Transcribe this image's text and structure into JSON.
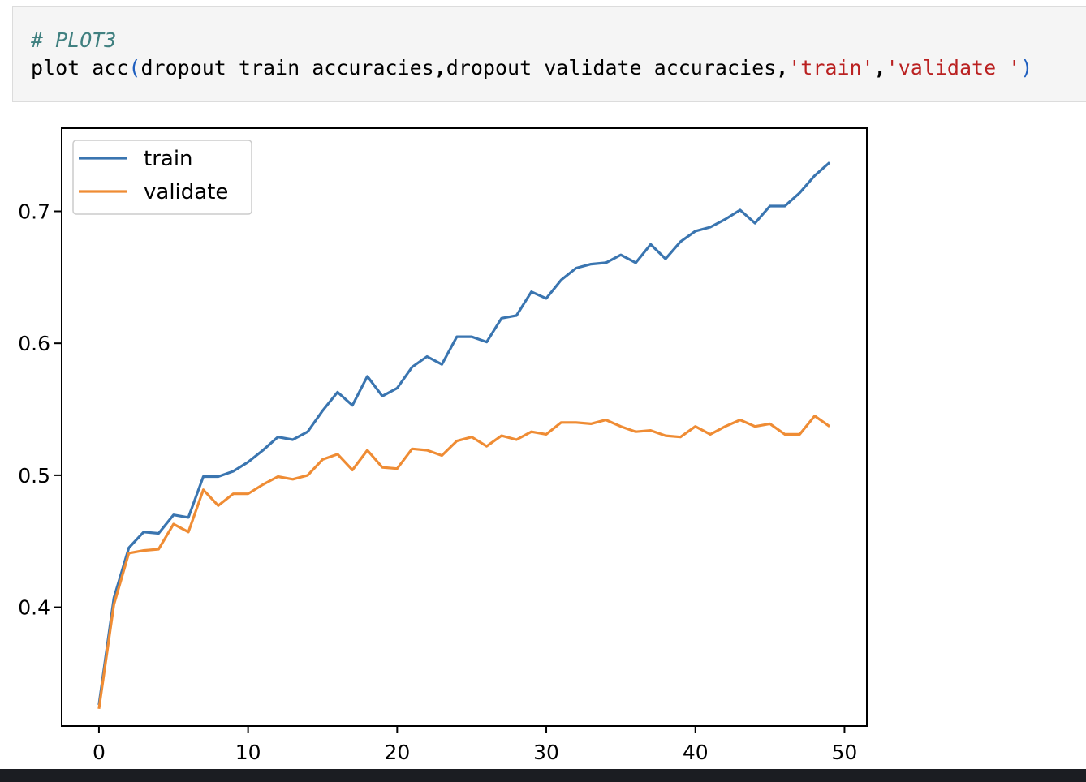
{
  "cell": {
    "comment": "# PLOT3",
    "code_func": "plot_acc",
    "code_open": "(",
    "code_arg1": "dropout_train_accuracies",
    "code_comma": ",",
    "code_arg2": "dropout_validate_accuracies",
    "code_str1": "'train'",
    "code_str2": "'validate '",
    "code_close": ")"
  },
  "chart_data": {
    "type": "line",
    "title": "",
    "xlabel": "",
    "ylabel": "",
    "xlim": [
      -2.5,
      51.5
    ],
    "ylim": [
      0.31,
      0.763
    ],
    "xticks": [
      0,
      10,
      20,
      30,
      40,
      50
    ],
    "xtick_labels": [
      "0",
      "10",
      "20",
      "30",
      "40",
      "50"
    ],
    "yticks": [
      0.4,
      0.5,
      0.6,
      0.7
    ],
    "ytick_labels": [
      "0.4",
      "0.5",
      "0.6",
      "0.7"
    ],
    "grid": false,
    "legend": "upper left",
    "x": [
      0,
      1,
      2,
      3,
      4,
      5,
      6,
      7,
      8,
      9,
      10,
      11,
      12,
      13,
      14,
      15,
      16,
      17,
      18,
      19,
      20,
      21,
      22,
      23,
      24,
      25,
      26,
      27,
      28,
      29,
      30,
      31,
      32,
      33,
      34,
      35,
      36,
      37,
      38,
      39,
      40,
      41,
      42,
      43,
      44,
      45,
      46,
      47,
      48,
      49
    ],
    "series": [
      {
        "name": "train",
        "color": "#3a75b0",
        "values": [
          0.326,
          0.407,
          0.445,
          0.457,
          0.456,
          0.47,
          0.468,
          0.499,
          0.499,
          0.503,
          0.51,
          0.519,
          0.529,
          0.527,
          0.533,
          0.549,
          0.563,
          0.553,
          0.575,
          0.56,
          0.566,
          0.582,
          0.59,
          0.584,
          0.605,
          0.605,
          0.601,
          0.619,
          0.621,
          0.639,
          0.634,
          0.648,
          0.657,
          0.66,
          0.661,
          0.667,
          0.661,
          0.675,
          0.664,
          0.677,
          0.685,
          0.688,
          0.694,
          0.701,
          0.691,
          0.704,
          0.704,
          0.714,
          0.727,
          0.737
        ]
      },
      {
        "name": "validate",
        "color": "#ef8c34",
        "values": [
          0.323,
          0.402,
          0.441,
          0.443,
          0.444,
          0.463,
          0.457,
          0.489,
          0.477,
          0.486,
          0.486,
          0.493,
          0.499,
          0.497,
          0.5,
          0.512,
          0.516,
          0.504,
          0.519,
          0.506,
          0.505,
          0.52,
          0.519,
          0.515,
          0.526,
          0.529,
          0.522,
          0.53,
          0.527,
          0.533,
          0.531,
          0.54,
          0.54,
          0.539,
          0.542,
          0.537,
          0.533,
          0.534,
          0.53,
          0.529,
          0.537,
          0.531,
          0.537,
          0.542,
          0.537,
          0.539,
          0.531,
          0.531,
          0.545,
          0.537
        ]
      }
    ]
  }
}
